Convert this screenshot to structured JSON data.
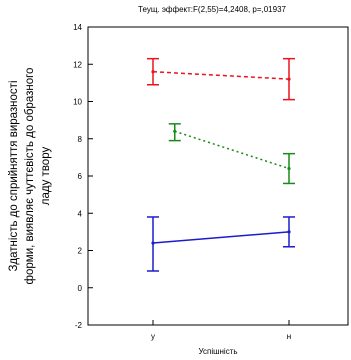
{
  "chart_data": {
    "type": "line",
    "title": "Теущ. эффект:F(2,55)=4,2408, p=,01937",
    "xlabel": "Успішність",
    "ylabel_line1": "Здатність до сприйняття виразності",
    "ylabel_line2": "форми, виявляє чуттєвість до образного",
    "ylabel_line3": "ладу твору",
    "categories": [
      "у",
      "н"
    ],
    "ylim": [
      -2,
      14
    ],
    "yticks": [
      "-2",
      "0",
      "2",
      "4",
      "6",
      "8",
      "10",
      "12",
      "14"
    ],
    "grid": false,
    "legend": "none",
    "series": [
      {
        "color": "#e8141e",
        "dash": "4,3",
        "mean": [
          11.6,
          11.2
        ],
        "lower": [
          10.9,
          10.1
        ],
        "upper": [
          12.3,
          12.3
        ]
      },
      {
        "color": "#178a17",
        "dash": "2,3",
        "mean": [
          null,
          6.4
        ],
        "lower": [
          null,
          5.6
        ],
        "upper": [
          null,
          7.2
        ],
        "mid": {
          "x": 8.4,
          "lo": 7.9,
          "hi": 8.8
        }
      },
      {
        "color": "#1c1ccc",
        "dash": "",
        "mean": [
          2.4,
          3.0
        ],
        "lower": [
          0.9,
          2.2
        ],
        "upper": [
          3.8,
          3.8
        ]
      }
    ]
  }
}
